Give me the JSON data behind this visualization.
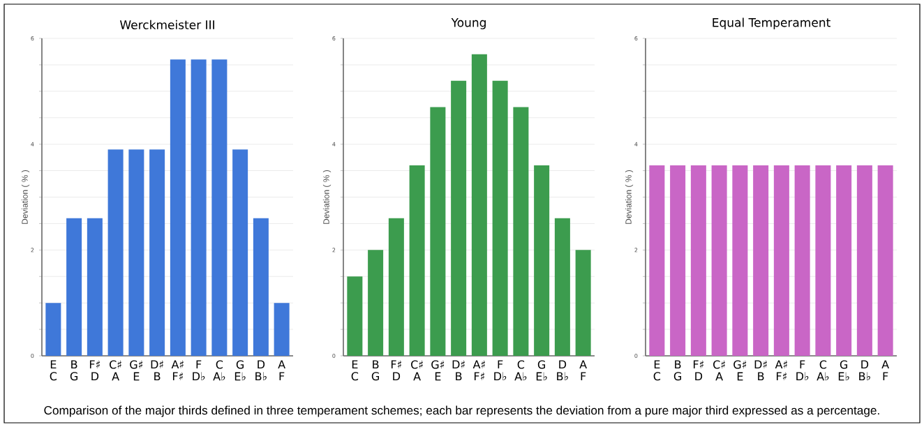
{
  "chart_data": [
    {
      "type": "bar",
      "title": "Werckmeister III",
      "ylabel": "Deviation ( % )",
      "categories": [
        "E C",
        "B G",
        "F♯ D",
        "C♯ A",
        "G♯ E",
        "D♯ B",
        "A♯ F♯",
        "F D♭",
        "C A♭",
        "G E♭",
        "D B♭",
        "A F"
      ],
      "values": [
        1.0,
        2.6,
        2.6,
        3.9,
        3.9,
        3.9,
        5.6,
        5.6,
        5.6,
        3.9,
        2.6,
        1.0
      ],
      "color": "#3f78d9",
      "ylim": [
        0,
        6
      ],
      "yticks": [
        0,
        {
          "value": 0.5,
          "label": null
        },
        {
          "value": 1,
          "label": null
        },
        {
          "value": 1.5,
          "label": null
        },
        2,
        {
          "value": 2.5,
          "label": null
        },
        {
          "value": 3,
          "label": null
        },
        {
          "value": 3.5,
          "label": null
        },
        4,
        {
          "value": 4.5,
          "label": null
        },
        {
          "value": 5,
          "label": null
        },
        {
          "value": 5.5,
          "label": null
        },
        6
      ],
      "grid": "y",
      "annotations": [
        "Comparison of the major thirds defined in three temperament schemes; each bar represents the deviation from a pure major third expressed as a percentage."
      ]
    },
    {
      "type": "bar",
      "title": "Young",
      "ylabel": "Deviation ( % )",
      "categories": [
        "E C",
        "B G",
        "F♯ D",
        "C♯ A",
        "G♯ E",
        "D♯ B",
        "A♯ F♯",
        "F D♭",
        "C A♭",
        "G E♭",
        "D B♭",
        "A F"
      ],
      "values": [
        1.5,
        2.0,
        2.6,
        3.6,
        4.7,
        5.2,
        5.7,
        5.2,
        4.7,
        3.6,
        2.6,
        2.0
      ],
      "color": "#3c9c4e",
      "ylim": [
        0,
        6
      ],
      "yticks": [
        0,
        {
          "value": 0.5,
          "label": null
        },
        {
          "value": 1,
          "label": null
        },
        {
          "value": 1.5,
          "label": null
        },
        2,
        {
          "value": 2.5,
          "label": null
        },
        {
          "value": 3,
          "label": null
        },
        {
          "value": 3.5,
          "label": null
        },
        4,
        {
          "value": 4.5,
          "label": null
        },
        {
          "value": 5,
          "label": null
        },
        {
          "value": 5.5,
          "label": null
        },
        6
      ],
      "grid": "y"
    },
    {
      "type": "bar",
      "title": "Equal Temperament",
      "ylabel": "Deviation ( % )",
      "categories": [
        "E C",
        "B G",
        "F♯ D",
        "C♯ A",
        "G♯ E",
        "D♯ B",
        "A♯ F♯",
        "F D♭",
        "C A♭",
        "G E♭",
        "D B♭",
        "A F"
      ],
      "values": [
        3.6,
        3.6,
        3.6,
        3.6,
        3.6,
        3.6,
        3.6,
        3.6,
        3.6,
        3.6,
        3.6,
        3.6
      ],
      "color": "#c966c6",
      "ylim": [
        0,
        6
      ],
      "yticks": [
        0,
        {
          "value": 0.5,
          "label": null
        },
        {
          "value": 1,
          "label": null
        },
        {
          "value": 1.5,
          "label": null
        },
        2,
        {
          "value": 2.5,
          "label": null
        },
        {
          "value": 3,
          "label": null
        },
        {
          "value": 3.5,
          "label": null
        },
        4,
        {
          "value": 4.5,
          "label": null
        },
        {
          "value": 5,
          "label": null
        },
        {
          "value": 5.5,
          "label": null
        },
        6
      ],
      "grid": "y"
    }
  ]
}
